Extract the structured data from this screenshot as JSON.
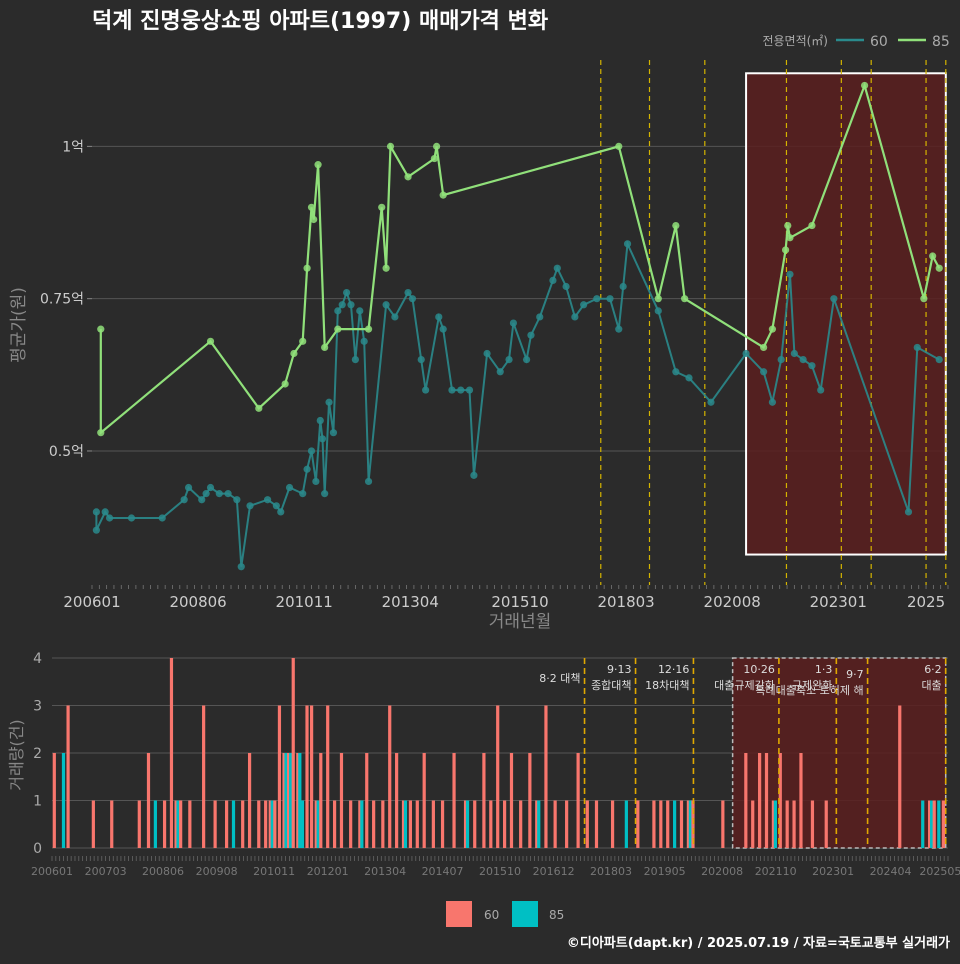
{
  "title": "덕계 진명웅상쇼핑 아파트(1997) 매매가격 변화",
  "footer": "©디아파트(dapt.kr) / 2025.07.19 / 자료=국토교통부 실거래가",
  "colors": {
    "bg": "#2b2b2b",
    "grid": "#555555",
    "s60_price": "#2a8a8c",
    "s85_price": "#90e07a",
    "vol60": "#f8766d",
    "vol85": "#00bfc4",
    "policy": "#d4b400",
    "highlight_fill": "#5a1f1f",
    "highlight_border": "#ffffff"
  },
  "chart_data": [
    {
      "type": "line",
      "title": "덕계 진명웅상쇼핑 아파트(1997) 매매가격 변화",
      "xlabel": "거래년월",
      "ylabel": "평균가(원)",
      "legend_title": "전용면적(㎡)",
      "legend_position": "top-right",
      "x_ticks": [
        "200601",
        "200806",
        "201011",
        "201304",
        "201510",
        "201803",
        "202008",
        "202301",
        "2025"
      ],
      "y_ticks": [
        {
          "value": 0.5,
          "label": "0.5억"
        },
        {
          "value": 0.75,
          "label": "0.75억"
        },
        {
          "value": 1.0,
          "label": "1억"
        }
      ],
      "xlim": [
        2006.0,
        2025.5
      ],
      "ylim": [
        0.28,
        1.15
      ],
      "grid": true,
      "highlight_range": [
        2020.9,
        2025.45
      ],
      "policy_lines": [
        2017.59,
        2018.7,
        2019.96,
        2021.82,
        2023.07,
        2023.75,
        2025.0,
        2025.45
      ],
      "series": [
        {
          "name": "60",
          "points": [
            [
              2006.1,
              0.4
            ],
            [
              2006.1,
              0.37
            ],
            [
              2006.3,
              0.4
            ],
            [
              2006.4,
              0.39
            ],
            [
              2006.9,
              0.39
            ],
            [
              2007.6,
              0.39
            ],
            [
              2008.1,
              0.42
            ],
            [
              2008.2,
              0.44
            ],
            [
              2008.5,
              0.42
            ],
            [
              2008.6,
              0.43
            ],
            [
              2008.7,
              0.44
            ],
            [
              2008.9,
              0.43
            ],
            [
              2009.1,
              0.43
            ],
            [
              2009.3,
              0.42
            ],
            [
              2009.4,
              0.31
            ],
            [
              2009.6,
              0.41
            ],
            [
              2010.0,
              0.42
            ],
            [
              2010.2,
              0.41
            ],
            [
              2010.3,
              0.4
            ],
            [
              2010.5,
              0.44
            ],
            [
              2010.8,
              0.43
            ],
            [
              2010.9,
              0.47
            ],
            [
              2011.0,
              0.5
            ],
            [
              2011.1,
              0.45
            ],
            [
              2011.2,
              0.55
            ],
            [
              2011.25,
              0.52
            ],
            [
              2011.3,
              0.43
            ],
            [
              2011.4,
              0.58
            ],
            [
              2011.5,
              0.53
            ],
            [
              2011.6,
              0.73
            ],
            [
              2011.7,
              0.74
            ],
            [
              2011.8,
              0.76
            ],
            [
              2011.9,
              0.74
            ],
            [
              2012.0,
              0.65
            ],
            [
              2012.1,
              0.73
            ],
            [
              2012.2,
              0.68
            ],
            [
              2012.3,
              0.45
            ],
            [
              2012.7,
              0.74
            ],
            [
              2012.9,
              0.72
            ],
            [
              2013.2,
              0.76
            ],
            [
              2013.3,
              0.75
            ],
            [
              2013.5,
              0.65
            ],
            [
              2013.6,
              0.6
            ],
            [
              2013.9,
              0.72
            ],
            [
              2014.0,
              0.7
            ],
            [
              2014.2,
              0.6
            ],
            [
              2014.4,
              0.6
            ],
            [
              2014.6,
              0.6
            ],
            [
              2014.7,
              0.46
            ],
            [
              2015.0,
              0.66
            ],
            [
              2015.3,
              0.63
            ],
            [
              2015.5,
              0.65
            ],
            [
              2015.6,
              0.71
            ],
            [
              2015.9,
              0.65
            ],
            [
              2016.0,
              0.69
            ],
            [
              2016.2,
              0.72
            ],
            [
              2016.5,
              0.78
            ],
            [
              2016.6,
              0.8
            ],
            [
              2016.8,
              0.77
            ],
            [
              2017.0,
              0.72
            ],
            [
              2017.2,
              0.74
            ],
            [
              2017.5,
              0.75
            ],
            [
              2017.8,
              0.75
            ],
            [
              2018.0,
              0.7
            ],
            [
              2018.1,
              0.77
            ],
            [
              2018.2,
              0.84
            ],
            [
              2018.9,
              0.73
            ],
            [
              2019.3,
              0.63
            ],
            [
              2019.6,
              0.62
            ],
            [
              2020.1,
              0.58
            ],
            [
              2020.9,
              0.66
            ],
            [
              2021.3,
              0.63
            ],
            [
              2021.5,
              0.58
            ],
            [
              2021.7,
              0.65
            ],
            [
              2021.9,
              0.79
            ],
            [
              2022.0,
              0.66
            ],
            [
              2022.2,
              0.65
            ],
            [
              2022.4,
              0.64
            ],
            [
              2022.6,
              0.6
            ],
            [
              2022.9,
              0.75
            ],
            [
              2024.6,
              0.4
            ],
            [
              2024.8,
              0.67
            ],
            [
              2025.3,
              0.65
            ]
          ]
        },
        {
          "name": "85",
          "points": [
            [
              2006.2,
              0.7
            ],
            [
              2006.2,
              0.53
            ],
            [
              2008.7,
              0.68
            ],
            [
              2009.8,
              0.57
            ],
            [
              2010.4,
              0.61
            ],
            [
              2010.6,
              0.66
            ],
            [
              2010.8,
              0.68
            ],
            [
              2010.9,
              0.8
            ],
            [
              2011.0,
              0.9
            ],
            [
              2011.05,
              0.88
            ],
            [
              2011.15,
              0.97
            ],
            [
              2011.3,
              0.67
            ],
            [
              2011.6,
              0.7
            ],
            [
              2012.3,
              0.7
            ],
            [
              2012.6,
              0.9
            ],
            [
              2012.7,
              0.8
            ],
            [
              2012.8,
              1.0
            ],
            [
              2013.2,
              0.95
            ],
            [
              2013.8,
              0.98
            ],
            [
              2013.85,
              1.0
            ],
            [
              2014.0,
              0.92
            ],
            [
              2018.0,
              1.0
            ],
            [
              2018.9,
              0.75
            ],
            [
              2019.3,
              0.87
            ],
            [
              2019.5,
              0.75
            ],
            [
              2021.3,
              0.67
            ],
            [
              2021.5,
              0.7
            ],
            [
              2021.8,
              0.83
            ],
            [
              2021.85,
              0.87
            ],
            [
              2021.9,
              0.85
            ],
            [
              2022.4,
              0.87
            ],
            [
              2023.6,
              1.1
            ],
            [
              2024.95,
              0.75
            ],
            [
              2025.15,
              0.82
            ],
            [
              2025.3,
              0.8
            ]
          ]
        }
      ]
    },
    {
      "type": "bar",
      "xlabel": "",
      "ylabel": "거래량(건)",
      "x_ticks": [
        "200601",
        "200703",
        "200806",
        "200908",
        "201011",
        "201201",
        "201304",
        "201407",
        "201510",
        "201612",
        "201803",
        "201905",
        "202008",
        "202110",
        "202301",
        "202404",
        "202505"
      ],
      "ylim": [
        0,
        4
      ],
      "y_ticks": [
        0,
        1,
        2,
        3,
        4
      ],
      "grid": true,
      "legend_position": "bottom-center",
      "series_names": [
        "60",
        "85"
      ],
      "highlight_range": [
        2020.9,
        2025.45
      ],
      "policy_annotations": [
        {
          "x": 2017.59,
          "lines": [
            "8·2 대책"
          ]
        },
        {
          "x": 2018.7,
          "lines": [
            "9·13",
            "종합대책"
          ]
        },
        {
          "x": 2019.96,
          "lines": [
            "12·16",
            "18차대책"
          ]
        },
        {
          "x": 2021.82,
          "lines": [
            "10·26",
            "대출규제강화"
          ]
        },
        {
          "x": 2023.07,
          "lines": [
            "1·3",
            "규제완화"
          ]
        },
        {
          "x": 2023.75,
          "lines": [
            "9·7",
            "특례대출축소 토허제 해"
          ]
        },
        {
          "x": 2025.45,
          "lines": [
            "6·2",
            "대출"
          ]
        }
      ],
      "bars": [
        [
          2006.05,
          2,
          0
        ],
        [
          2006.25,
          0,
          2
        ],
        [
          2006.35,
          3,
          0
        ],
        [
          2006.9,
          1,
          0
        ],
        [
          2007.3,
          1,
          0
        ],
        [
          2007.9,
          1,
          0
        ],
        [
          2008.1,
          2,
          0
        ],
        [
          2008.25,
          0,
          1
        ],
        [
          2008.45,
          1,
          0
        ],
        [
          2008.6,
          4,
          0
        ],
        [
          2008.7,
          1,
          1
        ],
        [
          2008.8,
          1,
          0
        ],
        [
          2009.0,
          1,
          0
        ],
        [
          2009.3,
          3,
          0
        ],
        [
          2009.55,
          1,
          0
        ],
        [
          2009.8,
          1,
          0
        ],
        [
          2009.95,
          0,
          1
        ],
        [
          2010.15,
          1,
          0
        ],
        [
          2010.3,
          2,
          0
        ],
        [
          2010.5,
          1,
          0
        ],
        [
          2010.65,
          1,
          0
        ],
        [
          2010.75,
          1,
          1
        ],
        [
          2010.85,
          1,
          0
        ],
        [
          2010.95,
          3,
          0
        ],
        [
          2011.05,
          2,
          2
        ],
        [
          2011.15,
          2,
          2
        ],
        [
          2011.25,
          4,
          0
        ],
        [
          2011.35,
          2,
          2
        ],
        [
          2011.45,
          0,
          1
        ],
        [
          2011.55,
          3,
          0
        ],
        [
          2011.65,
          3,
          0
        ],
        [
          2011.75,
          1,
          1
        ],
        [
          2011.85,
          2,
          0
        ],
        [
          2012.0,
          3,
          0
        ],
        [
          2012.15,
          1,
          0
        ],
        [
          2012.3,
          2,
          0
        ],
        [
          2012.5,
          1,
          0
        ],
        [
          2012.7,
          1,
          1
        ],
        [
          2012.85,
          2,
          0
        ],
        [
          2013.0,
          1,
          0
        ],
        [
          2013.2,
          1,
          0
        ],
        [
          2013.35,
          3,
          0
        ],
        [
          2013.5,
          2,
          0
        ],
        [
          2013.65,
          1,
          1
        ],
        [
          2013.8,
          1,
          0
        ],
        [
          2013.95,
          1,
          0
        ],
        [
          2014.1,
          2,
          0
        ],
        [
          2014.3,
          1,
          0
        ],
        [
          2014.5,
          1,
          0
        ],
        [
          2014.75,
          2,
          0
        ],
        [
          2015.0,
          1,
          1
        ],
        [
          2015.2,
          1,
          0
        ],
        [
          2015.4,
          2,
          0
        ],
        [
          2015.55,
          1,
          0
        ],
        [
          2015.7,
          3,
          0
        ],
        [
          2015.85,
          1,
          0
        ],
        [
          2016.0,
          2,
          0
        ],
        [
          2016.2,
          1,
          0
        ],
        [
          2016.4,
          2,
          0
        ],
        [
          2016.55,
          1,
          1
        ],
        [
          2016.75,
          3,
          0
        ],
        [
          2016.95,
          1,
          0
        ],
        [
          2017.2,
          1,
          0
        ],
        [
          2017.45,
          2,
          0
        ],
        [
          2017.65,
          1,
          0
        ],
        [
          2017.85,
          1,
          0
        ],
        [
          2018.2,
          1,
          0
        ],
        [
          2018.5,
          0,
          1
        ],
        [
          2018.75,
          1,
          0
        ],
        [
          2019.1,
          1,
          0
        ],
        [
          2019.25,
          1,
          0
        ],
        [
          2019.4,
          1,
          0
        ],
        [
          2019.55,
          0,
          1
        ],
        [
          2019.7,
          1,
          0
        ],
        [
          2019.85,
          1,
          1
        ],
        [
          2019.95,
          1,
          0
        ],
        [
          2020.6,
          1,
          0
        ],
        [
          2021.1,
          2,
          0
        ],
        [
          2021.25,
          1,
          0
        ],
        [
          2021.4,
          2,
          0
        ],
        [
          2021.55,
          2,
          0
        ],
        [
          2021.7,
          1,
          1
        ],
        [
          2021.85,
          2,
          0
        ],
        [
          2022.0,
          1,
          0
        ],
        [
          2022.15,
          1,
          0
        ],
        [
          2022.3,
          2,
          0
        ],
        [
          2022.55,
          1,
          0
        ],
        [
          2022.85,
          1,
          0
        ],
        [
          2024.45,
          3,
          0
        ],
        [
          2024.95,
          0,
          1
        ],
        [
          2025.1,
          1,
          1
        ],
        [
          2025.2,
          1,
          0
        ],
        [
          2025.3,
          0,
          1
        ],
        [
          2025.4,
          1,
          0
        ]
      ]
    }
  ]
}
